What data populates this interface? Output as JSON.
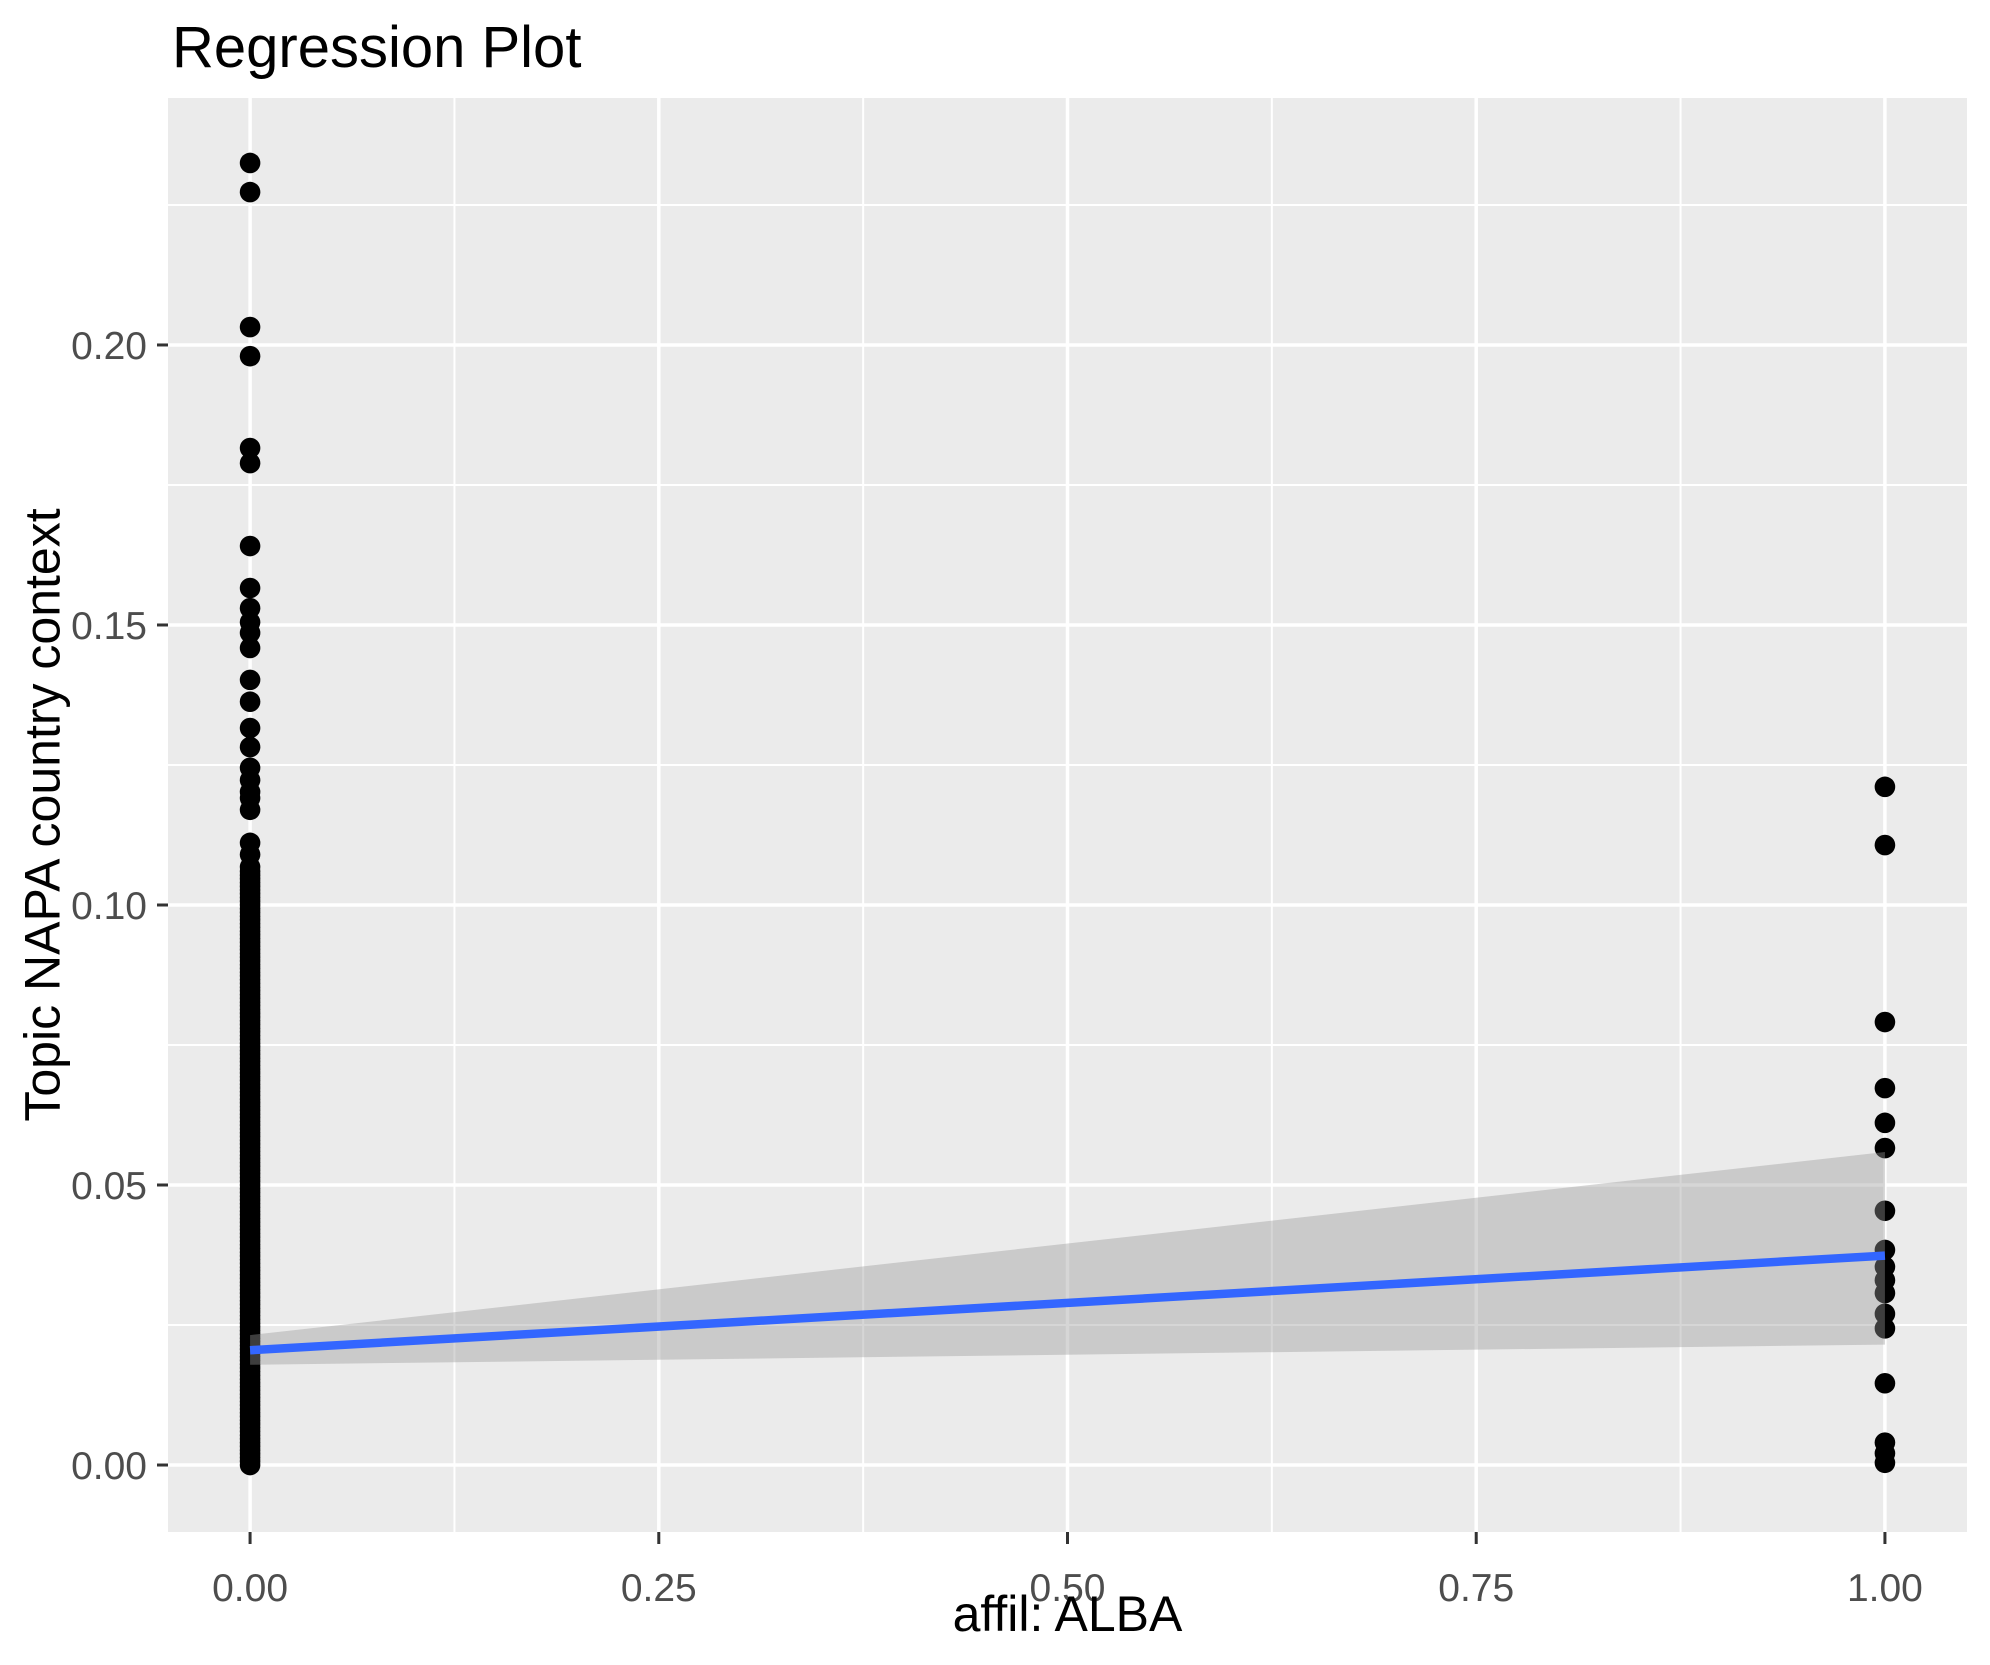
{
  "title": "Regression Plot",
  "chart_data": {
    "type": "scatter",
    "title": "Regression Plot",
    "xlabel": "affil: ALBA",
    "ylabel": "Topic NAPA country context",
    "xlim": [
      -0.0502,
      1.0502
    ],
    "ylim": [
      -0.01196,
      0.2441
    ],
    "grid": true,
    "legend": "none",
    "x_axis": {
      "tick_values": [
        0.0,
        0.25,
        0.5,
        0.75,
        1.0
      ],
      "tick_labels": [
        "0.00",
        "0.25",
        "0.50",
        "0.75",
        "1.00"
      ],
      "minor_tick_values": [
        0.125,
        0.375,
        0.625,
        0.875
      ]
    },
    "y_axis": {
      "tick_values": [
        0.0,
        0.05,
        0.1,
        0.15,
        0.2
      ],
      "tick_labels": [
        "0.00",
        "0.05",
        "0.10",
        "0.15",
        "0.20"
      ],
      "minor_tick_values": [
        0.025,
        0.075,
        0.125,
        0.175,
        0.225
      ]
    },
    "series": [
      {
        "name": "observations at x=0 (distinct upper points)",
        "x": 0,
        "y": [
          0.2325,
          0.2273,
          0.2032,
          0.198,
          0.1816,
          0.1789,
          0.1641,
          0.1566,
          0.153,
          0.1505,
          0.1486,
          0.1459,
          0.1402,
          0.1363,
          0.1316,
          0.1282,
          0.1245,
          0.1223,
          0.1202,
          0.1191,
          0.117,
          0.1111,
          0.109,
          0.1068
        ]
      },
      {
        "name": "observations at x=0 (dense overplotted strip)",
        "x": 0,
        "y_dense": {
          "min": 0.0,
          "max": 0.106,
          "count": 160
        }
      },
      {
        "name": "observations at x=1",
        "x": 1,
        "y": [
          0.1211,
          0.1107,
          0.0791,
          0.0673,
          0.0611,
          0.0566,
          0.0454,
          0.0384,
          0.0354,
          0.033,
          0.0307,
          0.027,
          0.0244,
          0.0146,
          0.004,
          0.0021,
          0.0004
        ]
      }
    ],
    "regression_line": {
      "x": [
        0,
        1
      ],
      "y": [
        0.0205,
        0.0374
      ],
      "color": "#3366FF",
      "width": 8.5
    },
    "confidence_band": {
      "x": [
        0,
        1
      ],
      "lower": [
        0.0179,
        0.0215
      ],
      "upper": [
        0.0232,
        0.0559
      ],
      "fill": "#999999",
      "opacity": 0.4
    },
    "style": {
      "panel_bg": "#EBEBEB",
      "grid_color": "#FFFFFF",
      "major_grid_width": 3.5,
      "minor_grid_width": 2,
      "point_color": "#000000",
      "point_radius": 10.3,
      "tick_mark_color": "#333333",
      "tick_label_color": "#4D4D4D",
      "title_color": "#000000"
    }
  }
}
